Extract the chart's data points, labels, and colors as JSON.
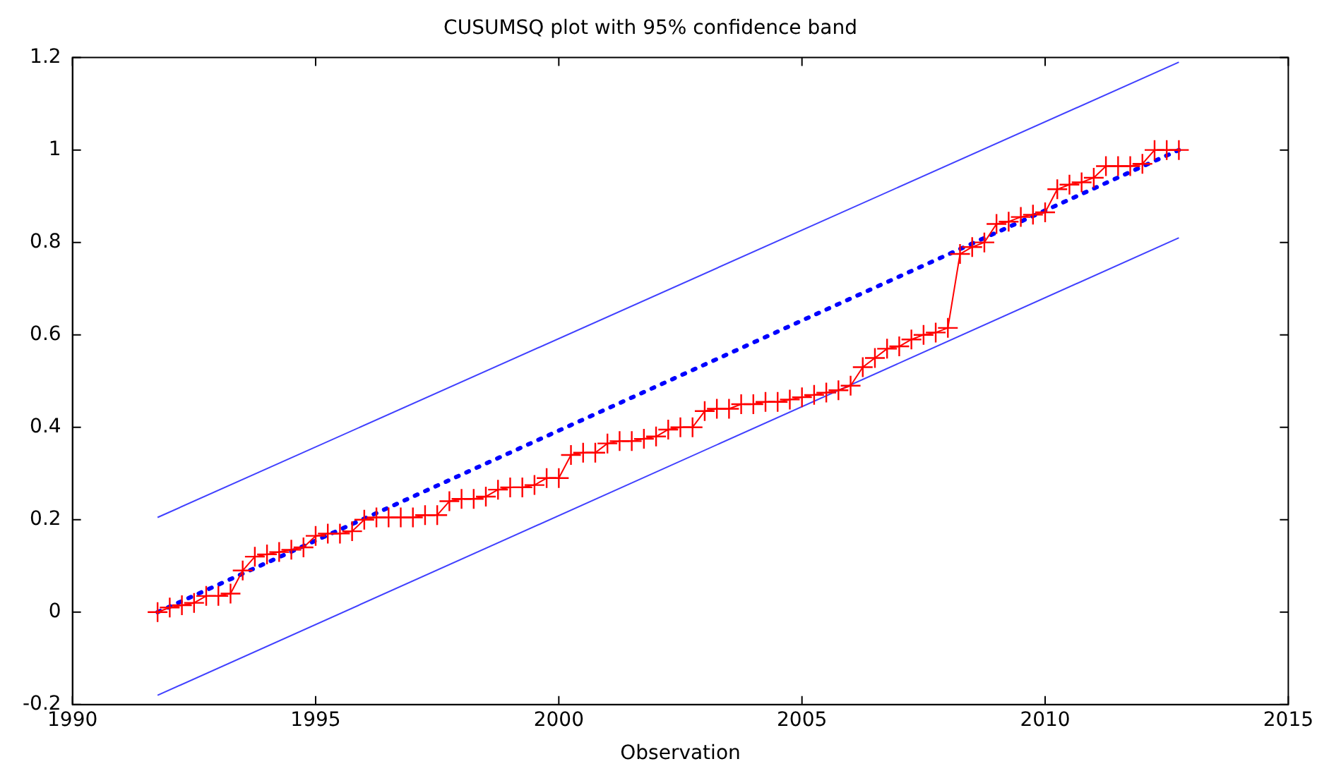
{
  "chart_data": {
    "type": "line",
    "title": "CUSUMSQ plot with 95% confidence band",
    "xlabel": "Observation",
    "xlim": [
      1990,
      2015
    ],
    "xticks": [
      1990,
      1995,
      2000,
      2005,
      2010,
      2015
    ],
    "ylim": [
      -0.2,
      1.2
    ],
    "yticks": [
      -0.2,
      0,
      0.2,
      0.4,
      0.6,
      0.8,
      1,
      1.2
    ],
    "grid": false,
    "legend": false,
    "series": [
      {
        "type": "line",
        "color": "#ff0000",
        "marker": "cross",
        "line_style": "solid",
        "x": [
          1991.75,
          1992,
          1992.25,
          1992.5,
          1992.75,
          1993,
          1993.25,
          1993.5,
          1993.75,
          1994,
          1994.25,
          1994.5,
          1994.75,
          1995,
          1995.25,
          1995.5,
          1995.75,
          1996,
          1996.25,
          1996.5,
          1996.75,
          1997,
          1997.25,
          1997.5,
          1997.75,
          1998,
          1998.25,
          1998.5,
          1998.75,
          1999,
          1999.25,
          1999.5,
          1999.75,
          2000,
          2000.25,
          2000.5,
          2000.75,
          2001,
          2001.25,
          2001.5,
          2001.75,
          2002,
          2002.25,
          2002.5,
          2002.75,
          2003,
          2003.25,
          2003.5,
          2003.75,
          2004,
          2004.25,
          2004.5,
          2004.75,
          2005,
          2005.25,
          2005.5,
          2005.75,
          2006,
          2006.25,
          2006.5,
          2006.75,
          2007,
          2007.25,
          2007.5,
          2007.75,
          2008,
          2008.25,
          2008.5,
          2008.75,
          2009,
          2009.25,
          2009.5,
          2009.75,
          2010,
          2010.25,
          2010.5,
          2010.75,
          2011,
          2011.25,
          2011.5,
          2011.75,
          2012,
          2012.25,
          2012.5,
          2012.75
        ],
        "values": [
          0,
          0.01,
          0.015,
          0.02,
          0.035,
          0.035,
          0.04,
          0.09,
          0.12,
          0.125,
          0.13,
          0.135,
          0.14,
          0.165,
          0.17,
          0.17,
          0.175,
          0.2,
          0.205,
          0.205,
          0.205,
          0.205,
          0.21,
          0.21,
          0.24,
          0.245,
          0.245,
          0.25,
          0.265,
          0.27,
          0.27,
          0.275,
          0.29,
          0.29,
          0.34,
          0.345,
          0.345,
          0.365,
          0.37,
          0.37,
          0.375,
          0.38,
          0.395,
          0.4,
          0.4,
          0.435,
          0.44,
          0.44,
          0.45,
          0.45,
          0.455,
          0.455,
          0.46,
          0.465,
          0.47,
          0.475,
          0.48,
          0.49,
          0.53,
          0.55,
          0.57,
          0.575,
          0.59,
          0.6,
          0.605,
          0.615,
          0.775,
          0.79,
          0.8,
          0.84,
          0.845,
          0.855,
          0.86,
          0.865,
          0.915,
          0.925,
          0.93,
          0.94,
          0.965,
          0.965,
          0.965,
          0.97,
          1,
          1,
          1
        ]
      },
      {
        "type": "line",
        "color": "#0000ff",
        "marker": "none",
        "line_style": "dotted",
        "x": [
          1991.75,
          2012.75
        ],
        "values": [
          0,
          1
        ]
      },
      {
        "type": "line",
        "color": "#4040ff",
        "marker": "none",
        "line_style": "solid",
        "x": [
          1991.75,
          2012.75
        ],
        "values": [
          0.205,
          1.19
        ]
      },
      {
        "type": "line",
        "color": "#4040ff",
        "marker": "none",
        "line_style": "solid",
        "x": [
          1991.75,
          2012.75
        ],
        "values": [
          -0.18,
          0.81
        ]
      }
    ]
  }
}
